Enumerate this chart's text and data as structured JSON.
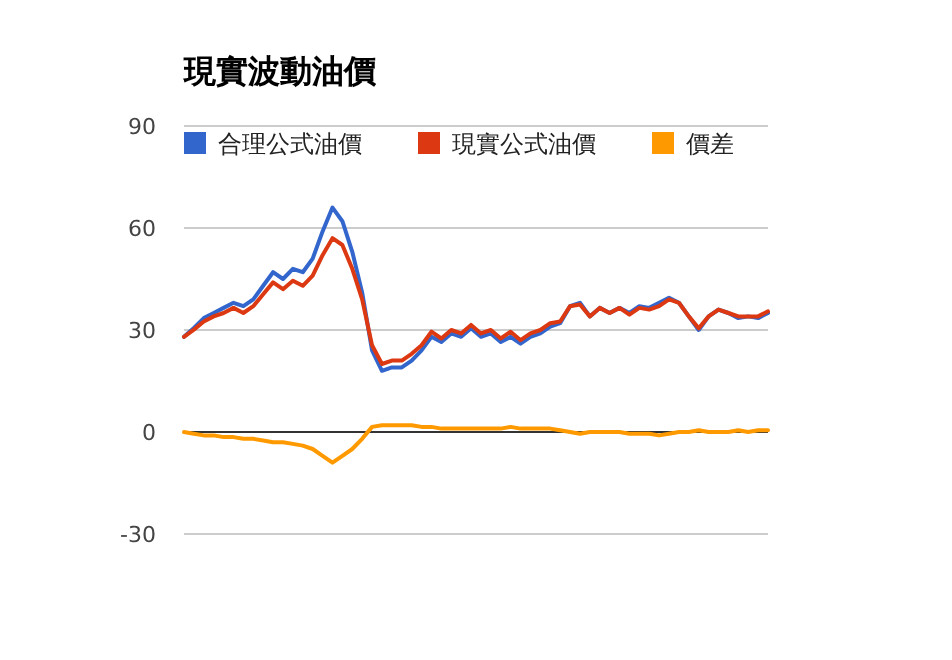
{
  "chart_data": {
    "type": "line",
    "title": "現實波動油價",
    "categories": [
      null,
      null,
      null,
      null,
      null,
      null,
      null,
      null,
      null,
      null,
      null,
      null,
      null,
      null,
      null,
      null,
      null,
      null,
      null,
      null,
      null,
      null,
      null,
      null,
      null,
      null,
      null,
      null,
      null,
      null,
      null,
      null,
      null,
      null,
      null,
      null,
      null,
      null,
      null,
      null,
      null,
      null,
      null,
      null,
      null,
      null,
      null,
      null,
      null,
      null,
      null,
      null,
      null,
      null,
      null,
      null,
      null,
      null,
      null,
      null
    ],
    "series": [
      {
        "name": "合理公式油價",
        "color": "#3366cc",
        "values": [
          28,
          30.6,
          33.5,
          35,
          36.5,
          38,
          37,
          39,
          43,
          47,
          45,
          48,
          47,
          51,
          59,
          66,
          62,
          53,
          41,
          24,
          18,
          19,
          19,
          21,
          24,
          28,
          26.5,
          29,
          28,
          30.5,
          28,
          29,
          26.5,
          28,
          26,
          28,
          29,
          31,
          32,
          37,
          38,
          34,
          36.5,
          35,
          36.5,
          35,
          37,
          36.5,
          38,
          39.5,
          38,
          34,
          30,
          34,
          36,
          35,
          33.5,
          34,
          33.5,
          35
        ]
      },
      {
        "name": "現實公式油價",
        "color": "#dc3912",
        "values": [
          28,
          30.1,
          32.5,
          34,
          35,
          36.5,
          35,
          37,
          40.5,
          44,
          42,
          44.5,
          43,
          46,
          52,
          57,
          55,
          48,
          39,
          25.5,
          20,
          21,
          21,
          23,
          25.5,
          29.5,
          27.5,
          30,
          29,
          31.5,
          29,
          30,
          27.5,
          29.5,
          27,
          29,
          30,
          32,
          32.5,
          37,
          37.5,
          34,
          36.5,
          35,
          36.5,
          34.5,
          36.5,
          36,
          37,
          39,
          38,
          34,
          30.5,
          34,
          36,
          35,
          34,
          34,
          34,
          35.5
        ]
      },
      {
        "name": "價差",
        "color": "#ff9900",
        "values": [
          0,
          -0.5,
          -1,
          -1,
          -1.5,
          -1.5,
          -2,
          -2,
          -2.5,
          -3,
          -3,
          -3.5,
          -4,
          -5,
          -7,
          -9,
          -7,
          -5,
          -2,
          1.5,
          2,
          2,
          2,
          2,
          1.5,
          1.5,
          1,
          1,
          1,
          1,
          1,
          1,
          1,
          1.5,
          1,
          1,
          1,
          1,
          0.5,
          0,
          -0.5,
          0,
          0,
          0,
          0,
          -0.5,
          -0.5,
          -0.5,
          -1,
          -0.5,
          0,
          0,
          0.5,
          0,
          0,
          0,
          0.5,
          0,
          0.5,
          0.5
        ]
      }
    ],
    "ylim": [
      -30,
      90
    ],
    "yticks": [
      -30,
      0,
      30,
      60,
      90
    ],
    "grid": "y",
    "legend": "top",
    "marker": "none",
    "line_style": "solid"
  }
}
